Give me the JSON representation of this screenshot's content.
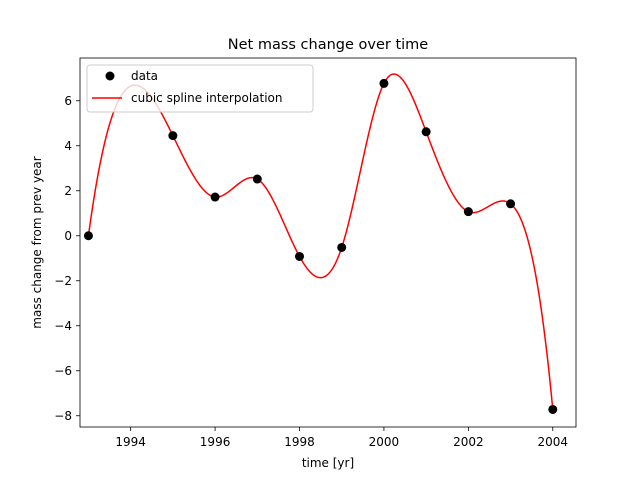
{
  "chart_data": {
    "type": "line",
    "title": "Net mass change over time",
    "xlabel": "time [yr]",
    "ylabel": "mass change from prev year",
    "xlim": [
      1992.8,
      2004.55
    ],
    "ylim": [
      -8.5,
      7.9
    ],
    "xticks": [
      1994,
      1996,
      1998,
      2000,
      2002,
      2004
    ],
    "yticks": [
      -8,
      -6,
      -4,
      -2,
      0,
      2,
      4,
      6
    ],
    "grid": false,
    "legend_position": "upper-left",
    "series": [
      {
        "name": "data",
        "kind": "scatter",
        "color": "#000000",
        "marker": "circle",
        "x": [
          1993,
          1995,
          1996,
          1997,
          1998,
          1999,
          2000,
          2001,
          2002,
          2003,
          2004
        ],
        "y": [
          0.0,
          4.45,
          1.72,
          2.52,
          -0.92,
          -0.52,
          6.77,
          4.62,
          1.07,
          1.42,
          -7.72
        ]
      },
      {
        "name": "cubic spline interpolation",
        "kind": "line",
        "color": "#ff0000",
        "method": "not-a-knot cubic spline through data points"
      }
    ]
  }
}
